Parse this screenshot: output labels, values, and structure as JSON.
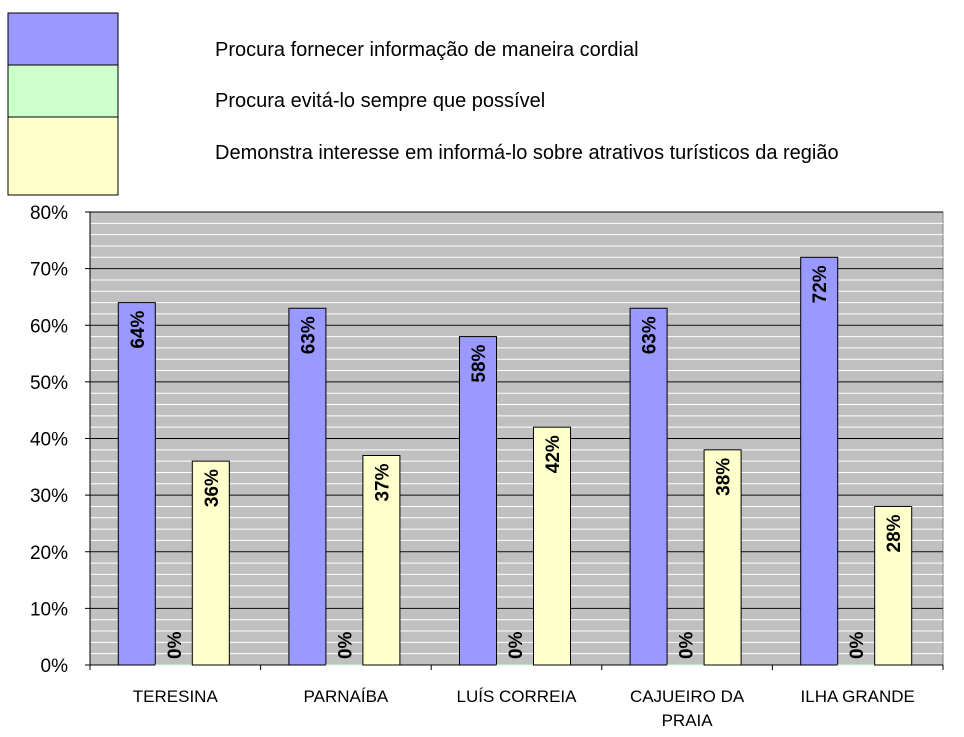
{
  "chart_data": {
    "type": "bar",
    "categories": [
      "TERESINA",
      "PARNAÍBA",
      "LUÍS CORREIA",
      "CAJUEIRO DA PRAIA",
      "ILHA GRANDE"
    ],
    "series": [
      {
        "name": "Procura fornecer informação de maneira cordial",
        "color": "#9999ff",
        "values": [
          64,
          63,
          58,
          63,
          72
        ],
        "value_labels": [
          "64%",
          "63%",
          "58%",
          "63%",
          "72%"
        ]
      },
      {
        "name": "Procura evitá-lo sempre que possível",
        "color": "#ccffcc",
        "values": [
          0,
          0,
          0,
          0,
          0
        ],
        "value_labels": [
          "0%",
          "0%",
          "0%",
          "0%",
          "0%"
        ]
      },
      {
        "name": "Demonstra interesse em informá-lo sobre atrativos turísticos da região",
        "color": "#ffffcc",
        "values": [
          36,
          37,
          42,
          38,
          28
        ],
        "value_labels": [
          "36%",
          "37%",
          "42%",
          "38%",
          "28%"
        ]
      }
    ],
    "ylim": [
      0,
      80
    ],
    "yticks": [
      {
        "value": 0,
        "label": "0%"
      },
      {
        "value": 10,
        "label": "10%"
      },
      {
        "value": 20,
        "label": "20%"
      },
      {
        "value": 30,
        "label": "30%"
      },
      {
        "value": 40,
        "label": "40%"
      },
      {
        "value": 50,
        "label": "50%"
      },
      {
        "value": 60,
        "label": "60%"
      },
      {
        "value": 70,
        "label": "70%"
      },
      {
        "value": 80,
        "label": "80%"
      }
    ],
    "grid": true
  }
}
